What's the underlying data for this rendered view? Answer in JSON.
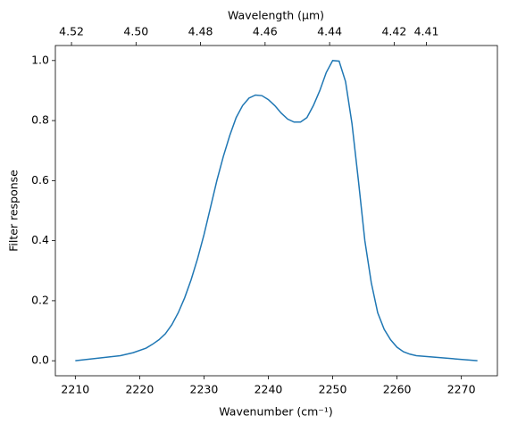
{
  "chart_data": {
    "type": "line",
    "xlabel": "Wavenumber (cm⁻¹)",
    "ylabel": "Filter response",
    "x2label": "Wavelength (μm)",
    "x": [
      2210,
      2217,
      2219,
      2221,
      2222,
      2223,
      2224,
      2225,
      2226,
      2227,
      2228,
      2229,
      2230,
      2231,
      2232,
      2233,
      2234,
      2235,
      2236,
      2237,
      2238,
      2239,
      2240,
      2241,
      2242,
      2243,
      2244,
      2245,
      2246,
      2247,
      2248,
      2249,
      2250,
      2251,
      2252,
      2253,
      2254,
      2255,
      2256,
      2257,
      2258,
      2259,
      2260,
      2261,
      2262,
      2263,
      2272.5
    ],
    "series": [
      {
        "color": "#1f77b4",
        "values": [
          0.0,
          0.017,
          0.027,
          0.042,
          0.055,
          0.07,
          0.09,
          0.12,
          0.16,
          0.21,
          0.27,
          0.34,
          0.42,
          0.51,
          0.6,
          0.68,
          0.75,
          0.81,
          0.85,
          0.875,
          0.885,
          0.883,
          0.87,
          0.85,
          0.825,
          0.805,
          0.795,
          0.795,
          0.81,
          0.85,
          0.9,
          0.96,
          1.0,
          0.998,
          0.93,
          0.79,
          0.6,
          0.4,
          0.26,
          0.16,
          0.105,
          0.07,
          0.045,
          0.03,
          0.022,
          0.017,
          0.0
        ]
      }
    ],
    "xlim": [
      2206.9,
      2275.6
    ],
    "xticks": [
      2210,
      2220,
      2230,
      2240,
      2250,
      2260,
      2270
    ],
    "ylim": [
      -0.05,
      1.05
    ],
    "yticks": [
      {
        "value": 0,
        "label": "0.0"
      },
      0.2,
      0.4,
      0.6,
      0.8,
      {
        "value": 1,
        "label": "1.0"
      }
    ],
    "x2lim": [
      4.525,
      4.388
    ],
    "x2ticks": [
      4.52,
      {
        "value": 4.5,
        "label": "4.50"
      },
      4.48,
      4.46,
      4.44,
      4.42,
      4.41
    ],
    "grid": false
  }
}
